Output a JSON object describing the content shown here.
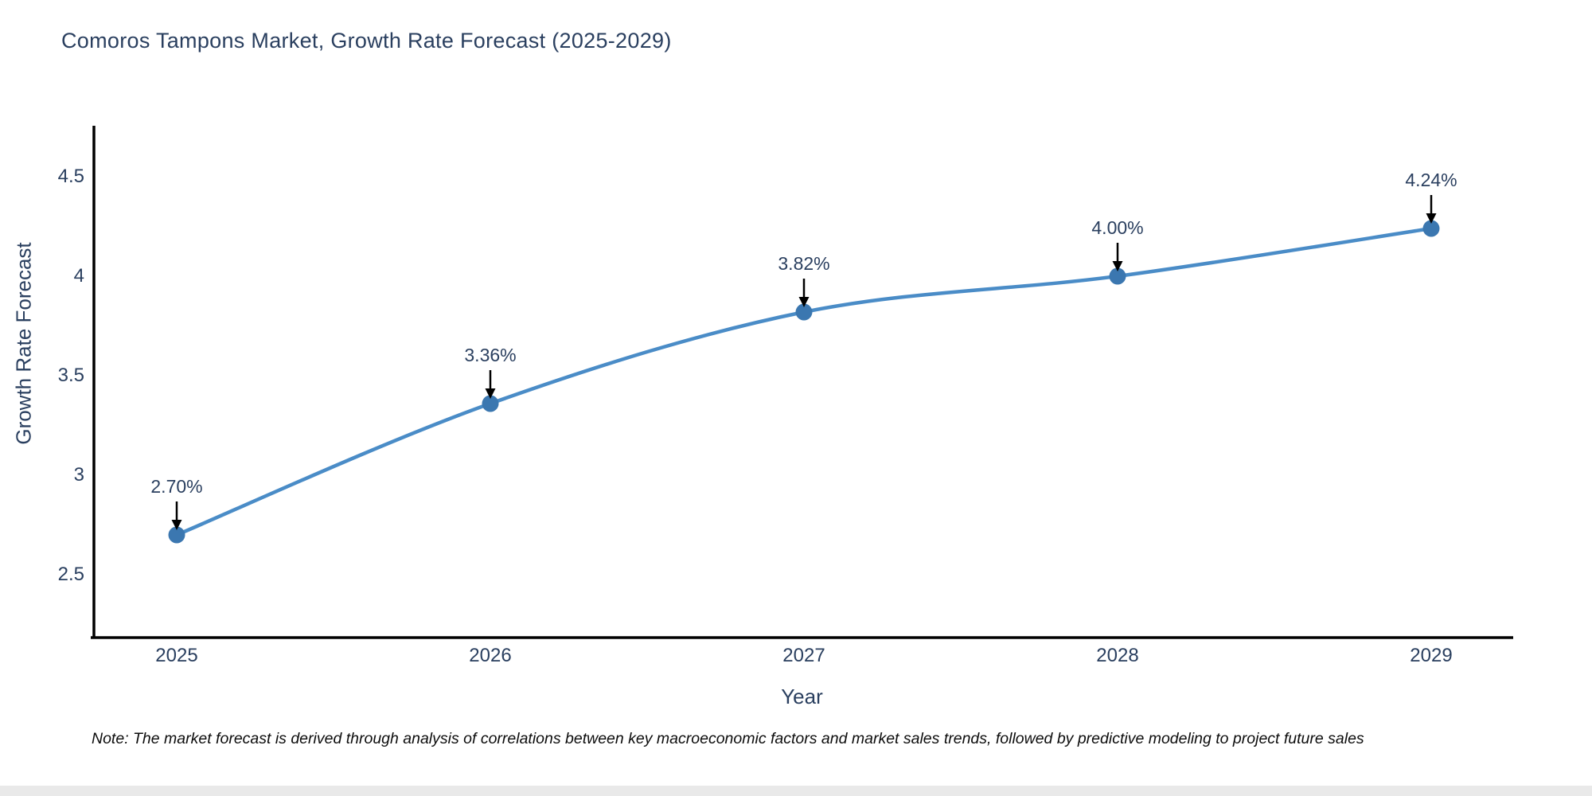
{
  "chart_data": {
    "type": "line",
    "title": "Comoros Tampons Market, Growth Rate Forecast (2025-2029)",
    "xlabel": "Year",
    "ylabel": "Growth Rate Forecast",
    "categories": [
      "2025",
      "2026",
      "2027",
      "2028",
      "2029"
    ],
    "values": [
      2.7,
      3.36,
      3.82,
      4.0,
      4.24
    ],
    "point_labels": [
      "2.70%",
      "3.36%",
      "3.82%",
      "4.00%",
      "4.24%"
    ],
    "series": [
      {
        "name": "Growth Rate Forecast",
        "values": [
          2.7,
          3.36,
          3.82,
          4.0,
          4.24
        ]
      }
    ],
    "xticks": [
      "2025",
      "2026",
      "2027",
      "2028",
      "2029"
    ],
    "yticks": [
      "2.5",
      "3",
      "3.5",
      "4",
      "4.5"
    ],
    "ytick_values": [
      2.5,
      3.0,
      3.5,
      4.0,
      4.5
    ],
    "ylim": [
      2.18,
      4.75
    ],
    "grid": false,
    "legend": "none",
    "marker_style": "circle",
    "annotation_arrows": true,
    "colors": {
      "line": "#4a8cc7",
      "marker": "#3b77b0",
      "axis": "#000000",
      "text": "#2a3f5f",
      "arrow": "#000000"
    }
  },
  "note": {
    "text": "Note: The market forecast is derived through analysis of correlations between key macroeconomic factors and market sales trends, followed by predictive modeling to project future sales"
  }
}
